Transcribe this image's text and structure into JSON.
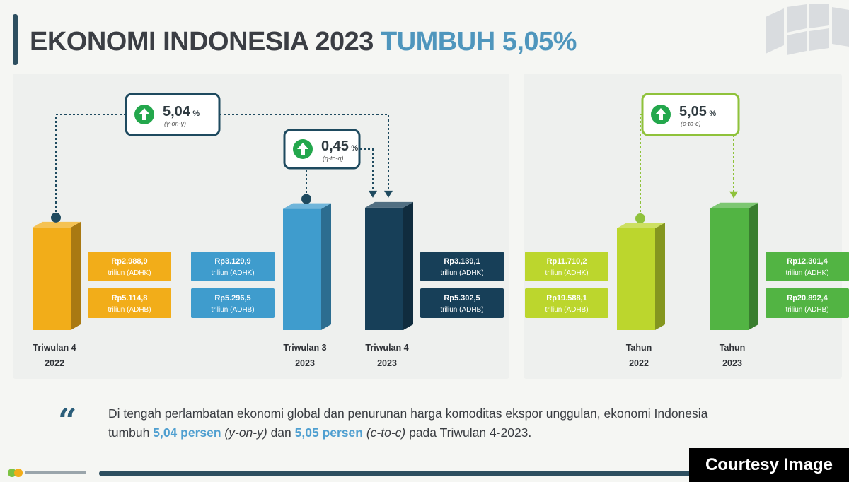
{
  "header": {
    "title_main": "EKONOMI INDONESIA 2023",
    "title_highlight": "TUMBUH 5,05%"
  },
  "chart_data": {
    "type": "bar",
    "title": "EKONOMI INDONESIA 2023 TUMBUH 5,05%",
    "charts": [
      {
        "panel": "quarterly",
        "categories": [
          "Triwulan 4 2022",
          "Triwulan 3 2023",
          "Triwulan 4 2023"
        ],
        "category_lines": [
          [
            "Triwulan 4",
            "2022"
          ],
          [
            "Triwulan 3",
            "2023"
          ],
          [
            "Triwulan 4",
            "2023"
          ]
        ],
        "series": [
          {
            "name": "ADHK",
            "values": [
              2988.9,
              3129.9,
              3139.1
            ],
            "labels": [
              "Rp2.988,9",
              "Rp3.129,9",
              "Rp3.139,1"
            ]
          },
          {
            "name": "ADHB",
            "values": [
              5114.8,
              5296.5,
              5302.5
            ],
            "labels": [
              "Rp5.114,8",
              "Rp5.296,5",
              "Rp5.302,5"
            ]
          }
        ],
        "value_unit": "triliun",
        "growth_callouts": [
          {
            "value": "5,04",
            "unit": "%",
            "basis": "(y-on-y)",
            "from": "Triwulan 4 2022",
            "to": "Triwulan 4 2023"
          },
          {
            "value": "0,45",
            "unit": "%",
            "basis": "(q-to-q)",
            "from": "Triwulan 3 2023",
            "to": "Triwulan 4 2023"
          }
        ],
        "colors": [
          "#f2ad19",
          "#3f9ccd",
          "#173f58"
        ]
      },
      {
        "panel": "annual",
        "categories": [
          "Tahun 2022",
          "Tahun 2023"
        ],
        "category_lines": [
          [
            "Tahun",
            "2022"
          ],
          [
            "Tahun",
            "2023"
          ]
        ],
        "series": [
          {
            "name": "ADHK",
            "values": [
              11710.2,
              12301.4
            ],
            "labels": [
              "Rp11.710,2",
              "Rp12.301,4"
            ]
          },
          {
            "name": "ADHB",
            "values": [
              19588.1,
              20892.4
            ],
            "labels": [
              "Rp19.588,1",
              "Rp20.892,4"
            ]
          }
        ],
        "value_unit": "triliun",
        "growth_callouts": [
          {
            "value": "5,05",
            "unit": "%",
            "basis": "(c-to-c)",
            "from": "Tahun 2022",
            "to": "Tahun 2023"
          }
        ],
        "colors": [
          "#bcd62d",
          "#52b443"
        ]
      }
    ],
    "label_suffix_adhk": "triliun (ADHK)",
    "label_suffix_adhb": "triliun (ADHB)"
  },
  "quote": {
    "mark": "“",
    "line1": "Di tengah perlambatan ekonomi global dan penurunan harga komoditas ekspor unggulan, ekonomi Indonesia",
    "prefix": "tumbuh ",
    "yoy_value": "5,04 persen",
    "yoy_label": "(y-on-y)",
    "mid": " dan ",
    "ctc_value": "5,05 persen",
    "ctc_label": "(c-to-c)",
    "suffix": " pada Triwulan 4-2023."
  },
  "watermark": {
    "text": "Courtesy Image"
  },
  "colors": {
    "title_dark": "#3b3e44",
    "title_highlight": "#4f96bd",
    "accent_navy": "#2d4f60",
    "growth_icon": "#23a74c"
  },
  "icons": [
    "arrow-up-circle-icon",
    "quote-icon"
  ]
}
